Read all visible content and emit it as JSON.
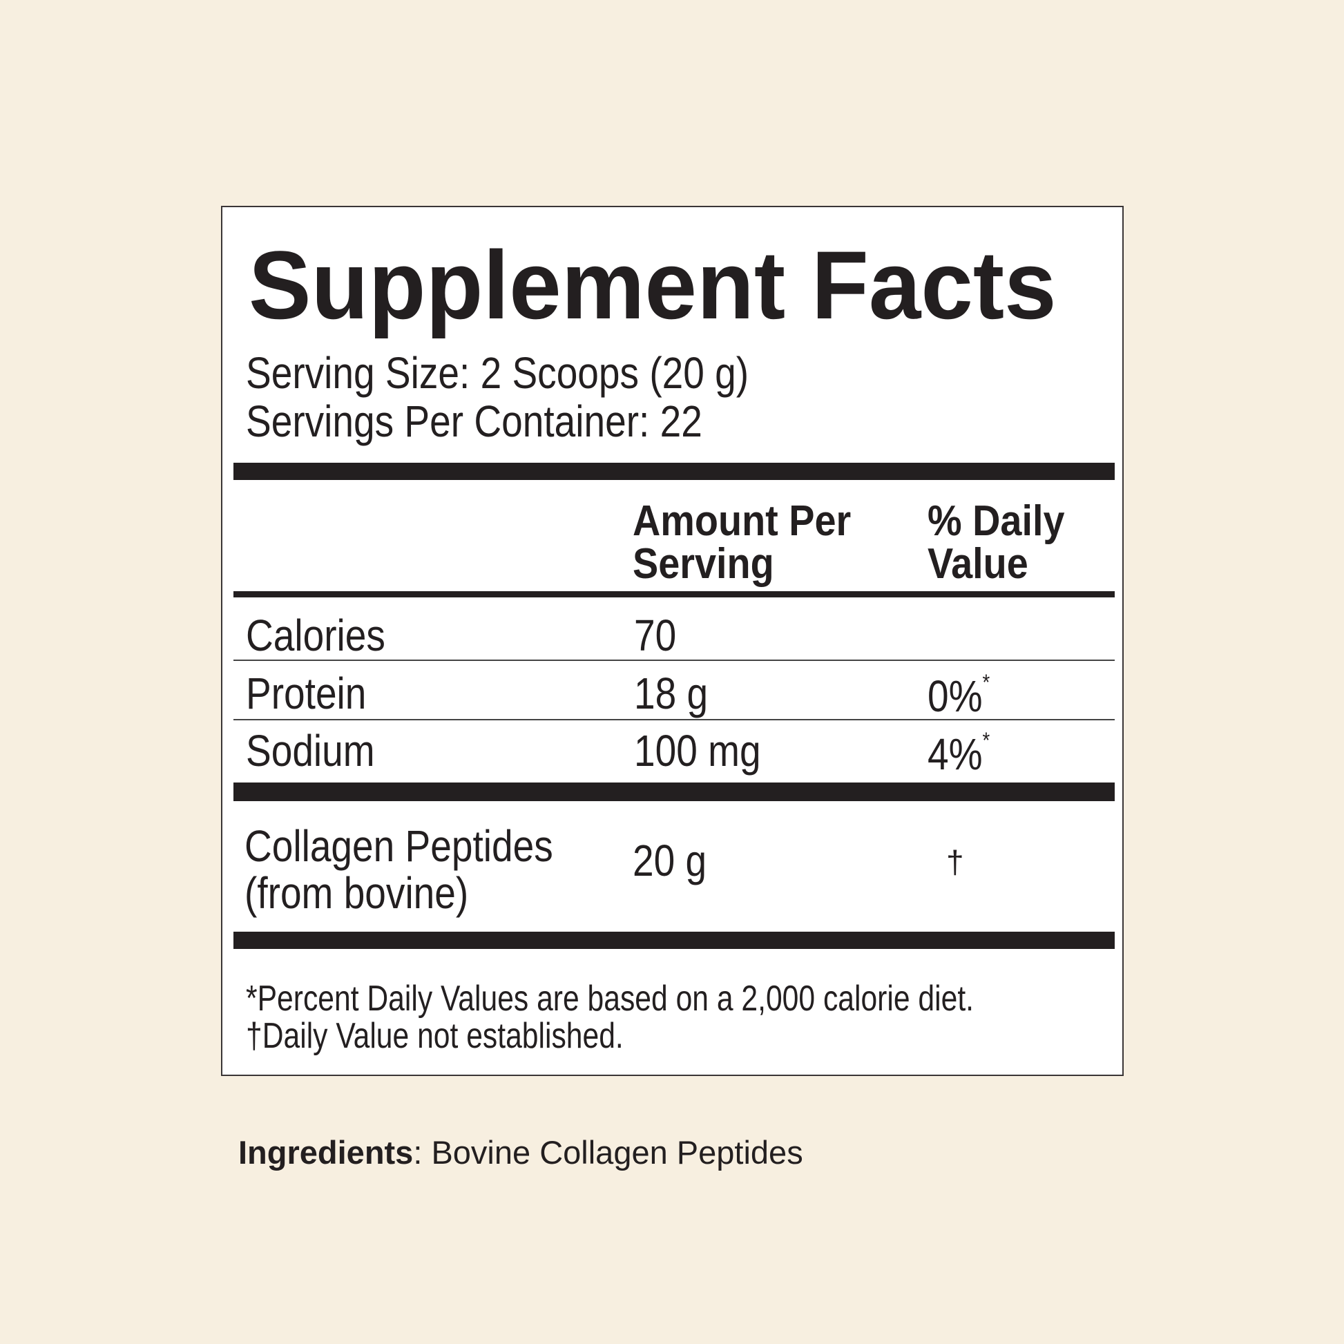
{
  "title": "Supplement Facts",
  "serving_size": "Serving Size: 2 Scoops (20 g)",
  "servings_per_container": "Servings Per Container: 22",
  "headers": {
    "amount_line1": "Amount Per",
    "amount_line2": "Serving",
    "dv_line1": "% Daily",
    "dv_line2": "Value"
  },
  "rows": [
    {
      "name": "Calories",
      "amount": "70",
      "dv": "",
      "mark": ""
    },
    {
      "name": "Protein",
      "amount": "18 g",
      "dv": "0%",
      "mark": "*"
    },
    {
      "name": "Sodium",
      "amount": "100 mg",
      "dv": "4%",
      "mark": "*"
    }
  ],
  "collagen": {
    "name_line1": "Collagen Peptides",
    "name_line2": "(from bovine)",
    "amount": "20 g",
    "dv": "†"
  },
  "footnotes": [
    "*Percent Daily Values are based on a 2,000 calorie diet.",
    "†Daily Value not established."
  ],
  "ingredients": {
    "label": "Ingredients",
    "value": ": Bovine Collagen Peptides"
  },
  "colors": {
    "background": "#f7efe0",
    "text": "#231f20",
    "panel": "#ffffff"
  }
}
